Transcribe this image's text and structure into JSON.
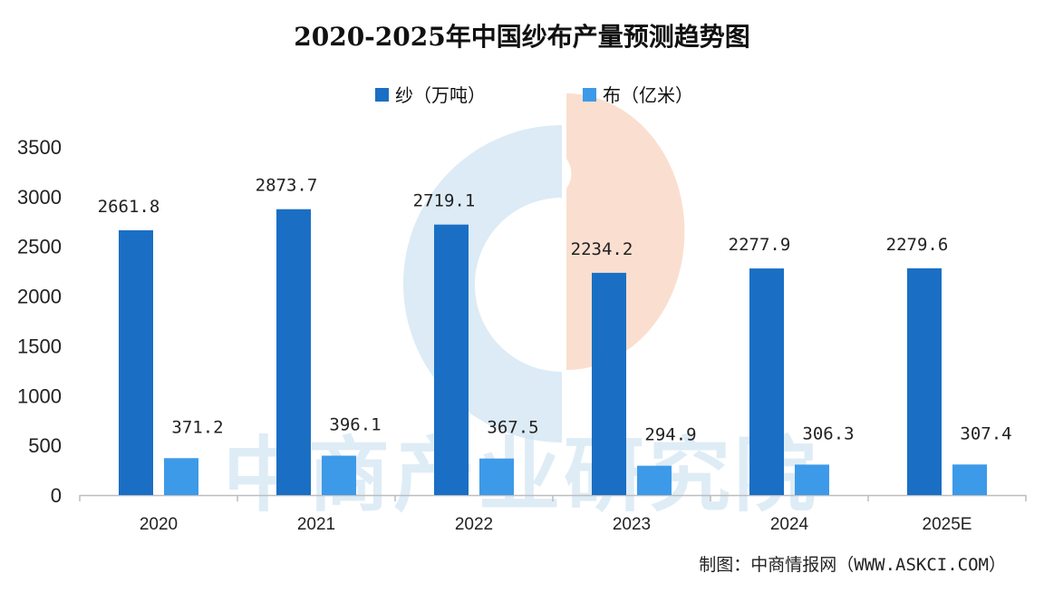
{
  "chart_data": {
    "type": "bar",
    "title": "2020-2025年中国纱布产量预测趋势图",
    "categories": [
      "2020",
      "2021",
      "2022",
      "2023",
      "2024",
      "2025E"
    ],
    "series": [
      {
        "name": "纱（万吨）",
        "values": [
          2661.8,
          2873.7,
          2719.1,
          2234.2,
          2277.9,
          2279.6
        ],
        "color": "#1a6fc4"
      },
      {
        "name": "布（亿米）",
        "values": [
          371.2,
          396.1,
          367.5,
          294.9,
          306.3,
          307.4
        ],
        "color": "#3d9ae8"
      }
    ],
    "ylim": [
      0,
      3500
    ],
    "yticks": [
      0,
      500,
      1000,
      1500,
      2000,
      2500,
      3000,
      3500
    ],
    "xlabel": "",
    "ylabel": "",
    "legend": "top-center",
    "grid": false
  },
  "source_credit": "制图：中商情报网（WWW.ASKCI.COM）",
  "watermark": "中商产业研究院",
  "colors": {
    "watermark_blue": "#d3e6f4",
    "watermark_orange": "#f9d9c8"
  }
}
